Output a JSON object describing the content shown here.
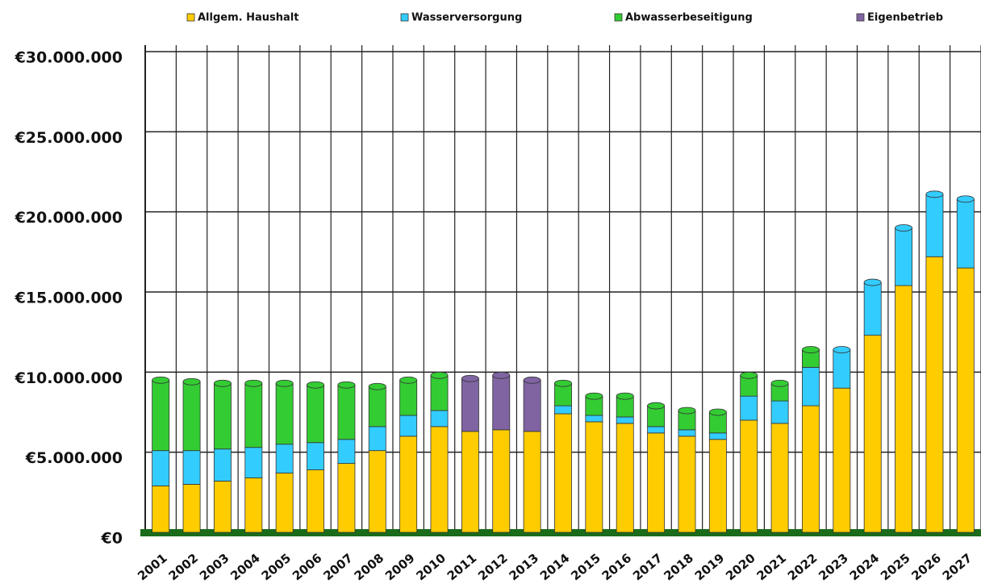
{
  "chart_data": {
    "type": "bar",
    "stacked": true,
    "categories": [
      "2001",
      "2002",
      "2003",
      "2004",
      "2005",
      "2006",
      "2007",
      "2008",
      "2009",
      "2010",
      "2011",
      "2012",
      "2013",
      "2014",
      "2015",
      "2016",
      "2017",
      "2018",
      "2019",
      "2020",
      "2021",
      "2022",
      "2023",
      "2024",
      "2025",
      "2026",
      "2027"
    ],
    "series": [
      {
        "name": "Allgem. Haushalt",
        "color": "#ffcc00",
        "values": [
          2900000,
          3000000,
          3200000,
          3400000,
          3700000,
          3900000,
          4300000,
          5100000,
          6000000,
          6600000,
          6300000,
          6400000,
          6300000,
          7400000,
          6900000,
          6800000,
          6200000,
          6000000,
          5800000,
          7000000,
          6800000,
          7900000,
          9000000,
          12300000,
          15400000,
          17200000,
          16500000
        ]
      },
      {
        "name": "Wasserversorgung",
        "color": "#33ccff",
        "values": [
          2200000,
          2100000,
          2000000,
          1900000,
          1800000,
          1700000,
          1500000,
          1500000,
          1300000,
          1000000,
          0,
          0,
          0,
          500000,
          400000,
          400000,
          400000,
          400000,
          400000,
          1500000,
          1400000,
          2400000,
          2400000,
          3300000,
          3600000,
          3900000,
          4300000
        ]
      },
      {
        "name": "Abwasserbeseitigung",
        "color": "#33cc33",
        "values": [
          4400000,
          4300000,
          4100000,
          4000000,
          3800000,
          3600000,
          3400000,
          2500000,
          2200000,
          2200000,
          0,
          0,
          0,
          1400000,
          1200000,
          1300000,
          1300000,
          1200000,
          1300000,
          1300000,
          1100000,
          1100000,
          0,
          0,
          0,
          0,
          0
        ]
      },
      {
        "name": "Eigenbetrieb",
        "color": "#8064a2",
        "values": [
          0,
          0,
          0,
          0,
          0,
          0,
          0,
          0,
          0,
          0,
          3300000,
          3400000,
          3200000,
          0,
          0,
          0,
          0,
          0,
          0,
          0,
          0,
          0,
          0,
          0,
          0,
          0,
          0
        ]
      }
    ],
    "ylim": [
      0,
      30000000
    ],
    "yticks": [
      {
        "value": 0,
        "label": "€0"
      },
      {
        "value": 5000000,
        "label": "€5.000.000"
      },
      {
        "value": 10000000,
        "label": "€10.000.000"
      },
      {
        "value": 15000000,
        "label": "€15.000.000"
      },
      {
        "value": 20000000,
        "label": "€20.000.000"
      },
      {
        "value": 25000000,
        "label": "€25.000.000"
      },
      {
        "value": 30000000,
        "label": "€30.000.000"
      }
    ],
    "grid": true,
    "legend": "top"
  }
}
